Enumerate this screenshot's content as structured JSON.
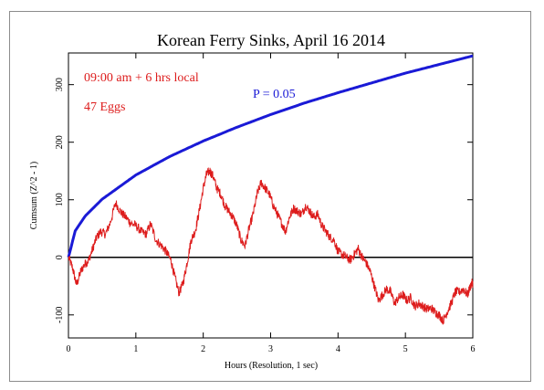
{
  "chart_data": {
    "type": "line",
    "title": "Korean Ferry Sinks, April 16 2014",
    "xlabel": "Hours (Resolution, 1 sec)",
    "ylabel": "Cumsum (Z^2 - 1)",
    "xlim": [
      0,
      6
    ],
    "ylim": [
      -140,
      355
    ],
    "x_ticks": [
      0,
      1,
      2,
      3,
      4,
      5,
      6
    ],
    "y_ticks": [
      -100,
      0,
      100,
      200,
      300
    ],
    "grid": false,
    "annotations": [
      {
        "text": "09:00 am + 6 hrs local",
        "color": "#dd1c1c"
      },
      {
        "text": "47 Eggs",
        "color": "#dd1c1c"
      },
      {
        "text": "P = 0.05",
        "color": "#1a1ad6"
      }
    ],
    "reference_lines": [
      {
        "y": 0,
        "color": "#000000"
      }
    ],
    "series": [
      {
        "color": "#1a1ad6",
        "function": "p05_envelope",
        "x": [
          0,
          0.1,
          0.25,
          0.5,
          1,
          1.5,
          2,
          2.5,
          3,
          3.5,
          4,
          4.5,
          5,
          5.5,
          6
        ],
        "values": [
          0,
          46,
          72,
          101,
          143,
          175,
          202,
          226,
          248,
          268,
          286,
          303,
          320,
          335,
          350
        ]
      },
      {
        "color": "#dd1c1c",
        "function": "cumulative_deviation",
        "x": [
          0,
          0.06,
          0.12,
          0.18,
          0.24,
          0.3,
          0.36,
          0.42,
          0.48,
          0.55,
          0.62,
          0.7,
          0.78,
          0.85,
          0.92,
          1.0,
          1.08,
          1.15,
          1.22,
          1.3,
          1.38,
          1.45,
          1.52,
          1.58,
          1.64,
          1.7,
          1.76,
          1.82,
          1.88,
          1.94,
          2.0,
          2.05,
          2.1,
          2.15,
          2.2,
          2.26,
          2.32,
          2.38,
          2.44,
          2.5,
          2.56,
          2.62,
          2.68,
          2.74,
          2.8,
          2.86,
          2.92,
          2.98,
          3.04,
          3.1,
          3.16,
          3.22,
          3.28,
          3.34,
          3.4,
          3.46,
          3.52,
          3.58,
          3.64,
          3.7,
          3.76,
          3.82,
          3.88,
          3.94,
          4.0,
          4.06,
          4.12,
          4.18,
          4.24,
          4.3,
          4.36,
          4.42,
          4.48,
          4.54,
          4.6,
          4.66,
          4.72,
          4.78,
          4.84,
          4.9,
          4.96,
          5.02,
          5.08,
          5.14,
          5.2,
          5.26,
          5.32,
          5.38,
          5.44,
          5.5,
          5.56,
          5.62,
          5.68,
          5.74,
          5.8,
          5.86,
          5.92,
          5.98,
          6.0
        ],
        "values": [
          0,
          -18,
          -48,
          -25,
          -12,
          -5,
          15,
          35,
          45,
          40,
          60,
          95,
          78,
          70,
          60,
          55,
          45,
          40,
          58,
          30,
          20,
          10,
          -5,
          -35,
          -62,
          -45,
          -10,
          30,
          45,
          80,
          120,
          145,
          150,
          140,
          120,
          110,
          90,
          80,
          70,
          55,
          30,
          20,
          50,
          75,
          110,
          130,
          120,
          110,
          90,
          75,
          60,
          45,
          70,
          85,
          80,
          75,
          90,
          80,
          70,
          75,
          55,
          45,
          35,
          30,
          10,
          5,
          0,
          -5,
          5,
          15,
          0,
          -10,
          -25,
          -50,
          -75,
          -65,
          -55,
          -60,
          -80,
          -70,
          -65,
          -75,
          -70,
          -85,
          -80,
          -85,
          -90,
          -88,
          -95,
          -100,
          -110,
          -95,
          -80,
          -60,
          -60,
          -55,
          -65,
          -45,
          -45
        ]
      }
    ]
  }
}
